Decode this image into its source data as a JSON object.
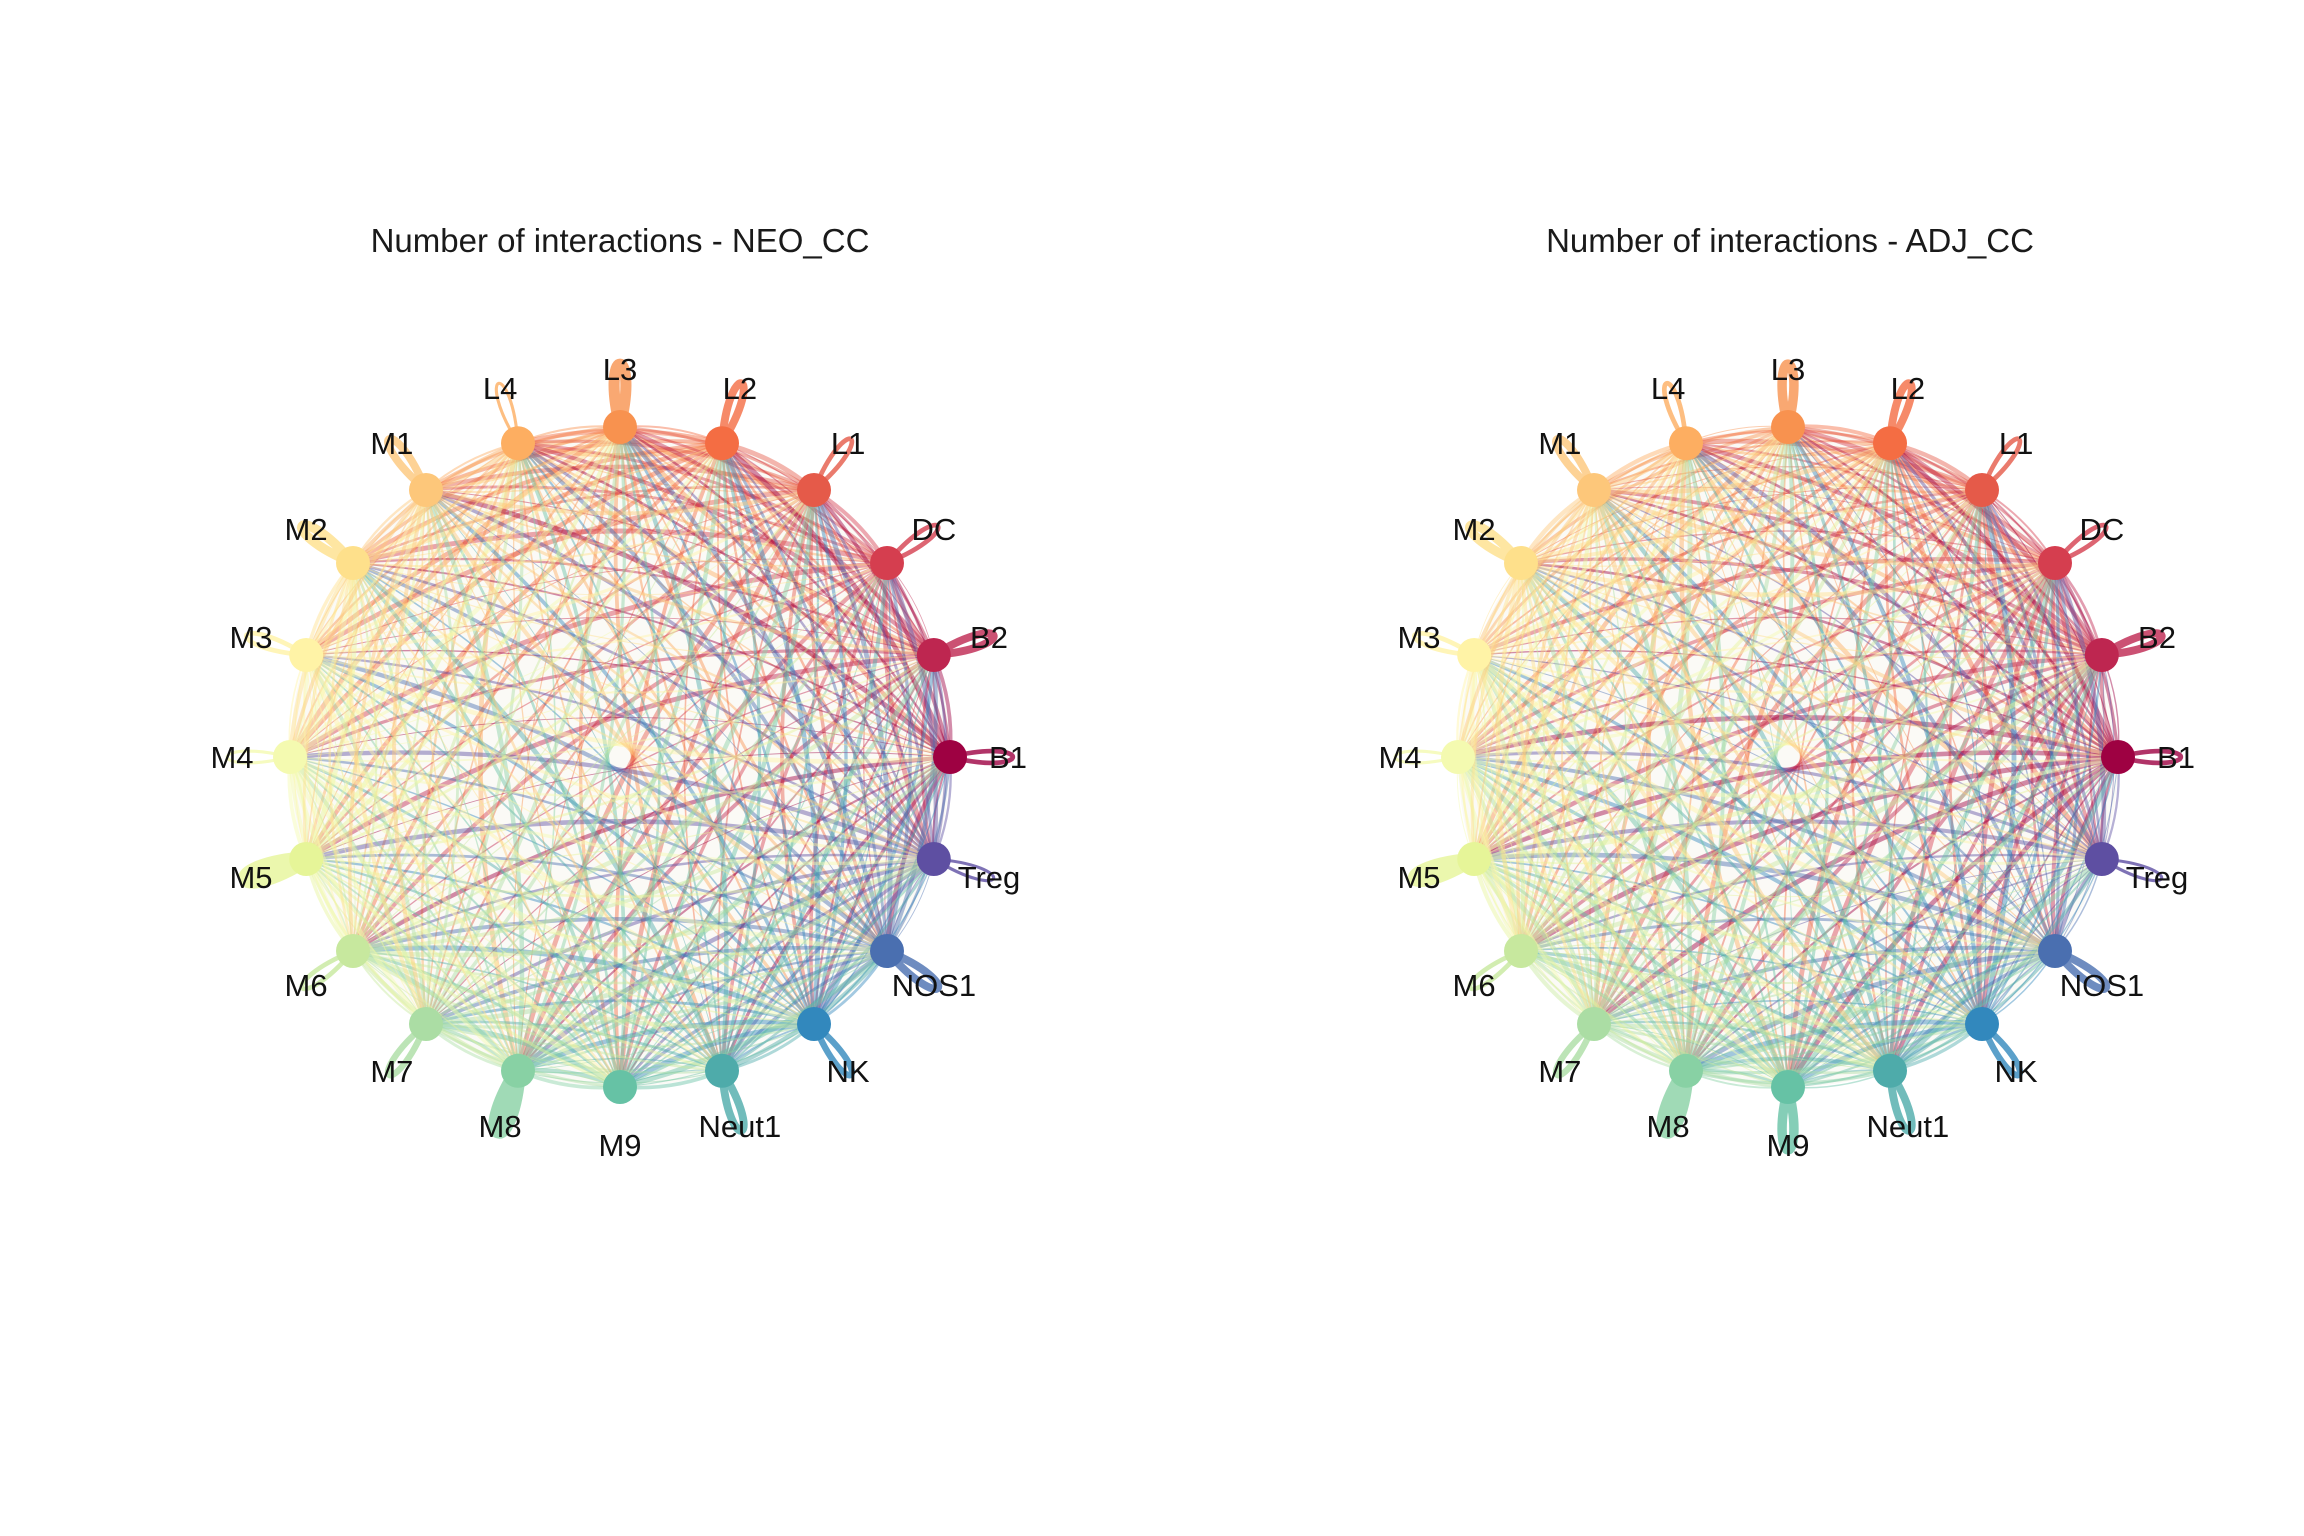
{
  "figure": {
    "panels": [
      {
        "id": "neo",
        "title": "Number of interactions - NEO_CC",
        "self_loop_weights": {
          "L4": 1,
          "L3": 6,
          "L2": 4,
          "L1": 2,
          "DC": 2,
          "B2": 4,
          "B1": 2,
          "Treg": 1,
          "NOS1": 4,
          "NK": 3,
          "Neut1": 4,
          "M9": 0,
          "M8": 9,
          "M7": 3,
          "M6": 2,
          "M5": 9,
          "M4": 1,
          "M3": 2,
          "M2": 5,
          "M1": 4
        }
      },
      {
        "id": "adj",
        "title": "Number of interactions - ADJ_CC",
        "self_loop_weights": {
          "L4": 2,
          "L3": 5,
          "L2": 4,
          "L1": 2,
          "DC": 2,
          "B2": 4,
          "B1": 2,
          "Treg": 1,
          "NOS1": 4,
          "NK": 3,
          "Neut1": 4,
          "M9": 5,
          "M8": 9,
          "M7": 3,
          "M6": 2,
          "M5": 7,
          "M4": 1,
          "M3": 2,
          "M2": 5,
          "M1": 4
        }
      }
    ],
    "nodes": [
      {
        "label": "L4",
        "color": "#fdae61"
      },
      {
        "label": "L3",
        "color": "#f8924f"
      },
      {
        "label": "L2",
        "color": "#f46d43"
      },
      {
        "label": "L1",
        "color": "#e55a49"
      },
      {
        "label": "DC",
        "color": "#d53e4f"
      },
      {
        "label": "B2",
        "color": "#be2650"
      },
      {
        "label": "B1",
        "color": "#9e0142"
      },
      {
        "label": "Treg",
        "color": "#5e4fa2"
      },
      {
        "label": "NOS1",
        "color": "#4a6fb0"
      },
      {
        "label": "NK",
        "color": "#3288bd"
      },
      {
        "label": "Neut1",
        "color": "#4eabaa"
      },
      {
        "label": "M9",
        "color": "#66c2a5"
      },
      {
        "label": "M8",
        "color": "#88d1a4"
      },
      {
        "label": "M7",
        "color": "#abdda4"
      },
      {
        "label": "M6",
        "color": "#c7e89e"
      },
      {
        "label": "M5",
        "color": "#e6f598"
      },
      {
        "label": "M4",
        "color": "#f4fab0"
      },
      {
        "label": "M3",
        "color": "#fff3a6"
      },
      {
        "label": "M2",
        "color": "#fee08b"
      },
      {
        "label": "M1",
        "color": "#fdc77a"
      }
    ]
  }
}
